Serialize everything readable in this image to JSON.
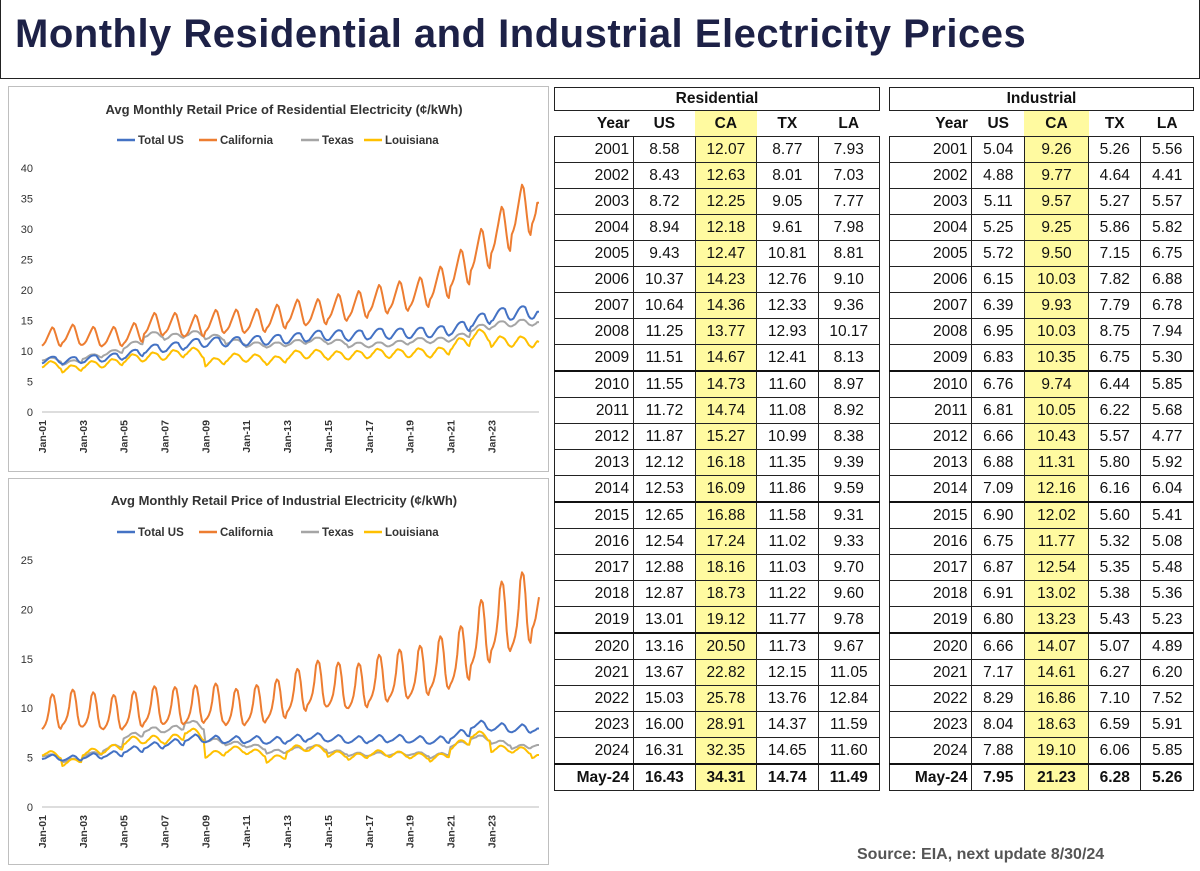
{
  "title": "Monthly Residential and Industrial Electricity Prices",
  "source": "Source:  EIA, next update 8/30/24",
  "colors": {
    "us": "#4472C4",
    "ca": "#ED7D31",
    "tx": "#A5A5A5",
    "la": "#FFC000",
    "title": "#1d2147",
    "highlight": "#fffaa0"
  },
  "chart_data": [
    {
      "type": "line",
      "title": "Avg Monthly Retail Price of Residential Electricity (¢/kWh)",
      "legend": [
        "Total US",
        "California",
        "Texas",
        "Louisiana"
      ],
      "ylim": [
        0,
        40
      ],
      "yticks": [
        "0",
        "5",
        "10",
        "15",
        "20",
        "25",
        "30",
        "35",
        "40"
      ],
      "xticks": [
        "Jan-01",
        "Jan-03",
        "Jan-05",
        "Jan-07",
        "Jan-09",
        "Jan-11",
        "Jan-13",
        "Jan-15",
        "Jan-17",
        "Jan-19",
        "Jan-21",
        "Jan-23"
      ],
      "xlabel": "",
      "ylabel": "",
      "series": [
        {
          "name": "Total US",
          "values": [
            8.58,
            8.43,
            8.72,
            8.94,
            9.43,
            10.37,
            10.64,
            11.25,
            11.51,
            11.55,
            11.72,
            11.87,
            12.12,
            12.53,
            12.65,
            12.54,
            12.88,
            12.87,
            13.01,
            13.16,
            13.67,
            15.03,
            16.0,
            16.31,
            16.43
          ]
        },
        {
          "name": "California",
          "values": [
            12.07,
            12.63,
            12.25,
            12.18,
            12.47,
            14.23,
            14.36,
            13.77,
            14.67,
            14.73,
            14.74,
            15.27,
            16.18,
            16.09,
            16.88,
            17.24,
            18.16,
            18.73,
            19.12,
            20.5,
            22.82,
            25.78,
            28.91,
            32.35,
            34.31
          ]
        },
        {
          "name": "Texas",
          "values": [
            8.77,
            8.01,
            9.05,
            9.61,
            10.81,
            12.76,
            12.33,
            12.93,
            12.41,
            11.6,
            11.08,
            10.99,
            11.35,
            11.86,
            11.58,
            11.02,
            11.03,
            11.22,
            11.77,
            11.73,
            12.15,
            13.76,
            14.37,
            14.65,
            14.74
          ]
        },
        {
          "name": "Louisiana",
          "values": [
            7.93,
            7.03,
            7.77,
            7.98,
            8.81,
            9.1,
            9.36,
            10.17,
            8.13,
            8.97,
            8.92,
            8.38,
            9.39,
            9.59,
            9.31,
            9.33,
            9.7,
            9.6,
            9.78,
            9.67,
            11.05,
            12.84,
            11.59,
            11.6,
            11.49
          ]
        }
      ]
    },
    {
      "type": "line",
      "title": "Avg Monthly Retail Price of Industrial Electricity (¢/kWh)",
      "legend": [
        "Total US",
        "California",
        "Texas",
        "Louisiana"
      ],
      "ylim": [
        0,
        25
      ],
      "yticks": [
        "0",
        "5",
        "10",
        "15",
        "20",
        "25"
      ],
      "xticks": [
        "Jan-01",
        "Jan-03",
        "Jan-05",
        "Jan-07",
        "Jan-09",
        "Jan-11",
        "Jan-13",
        "Jan-15",
        "Jan-17",
        "Jan-19",
        "Jan-21",
        "Jan-23"
      ],
      "xlabel": "",
      "ylabel": "",
      "series": [
        {
          "name": "Total US",
          "values": [
            5.04,
            4.88,
            5.11,
            5.25,
            5.72,
            6.15,
            6.39,
            6.95,
            6.83,
            6.76,
            6.81,
            6.66,
            6.88,
            7.09,
            6.9,
            6.75,
            6.87,
            6.91,
            6.8,
            6.66,
            7.17,
            8.29,
            8.04,
            7.88,
            7.95
          ]
        },
        {
          "name": "California",
          "values": [
            9.26,
            9.77,
            9.57,
            9.25,
            9.5,
            10.03,
            9.93,
            10.03,
            10.35,
            9.74,
            10.05,
            10.43,
            11.31,
            12.16,
            12.02,
            11.77,
            12.54,
            13.02,
            13.23,
            14.07,
            14.61,
            16.86,
            18.63,
            19.1,
            21.23
          ]
        },
        {
          "name": "Texas",
          "values": [
            5.26,
            4.64,
            5.27,
            5.86,
            7.15,
            7.82,
            7.79,
            8.75,
            6.75,
            6.44,
            6.22,
            5.57,
            5.8,
            6.16,
            5.6,
            5.32,
            5.35,
            5.38,
            5.43,
            5.07,
            6.27,
            7.1,
            6.59,
            6.06,
            6.28
          ]
        },
        {
          "name": "Louisiana",
          "values": [
            5.56,
            4.41,
            5.57,
            5.82,
            6.75,
            6.88,
            6.78,
            7.94,
            5.3,
            5.85,
            5.68,
            4.77,
            5.92,
            6.04,
            5.41,
            5.08,
            5.48,
            5.36,
            5.23,
            4.89,
            6.2,
            7.52,
            5.91,
            5.85,
            5.26
          ]
        }
      ]
    },
    {
      "type": "table",
      "title": "Residential",
      "columns": [
        "Year",
        "US",
        "CA",
        "TX",
        "LA"
      ],
      "rows": [
        [
          "2001",
          "8.58",
          "12.07",
          "8.77",
          "7.93"
        ],
        [
          "2002",
          "8.43",
          "12.63",
          "8.01",
          "7.03"
        ],
        [
          "2003",
          "8.72",
          "12.25",
          "9.05",
          "7.77"
        ],
        [
          "2004",
          "8.94",
          "12.18",
          "9.61",
          "7.98"
        ],
        [
          "2005",
          "9.43",
          "12.47",
          "10.81",
          "8.81"
        ],
        [
          "2006",
          "10.37",
          "14.23",
          "12.76",
          "9.10"
        ],
        [
          "2007",
          "10.64",
          "14.36",
          "12.33",
          "9.36"
        ],
        [
          "2008",
          "11.25",
          "13.77",
          "12.93",
          "10.17"
        ],
        [
          "2009",
          "11.51",
          "14.67",
          "12.41",
          "8.13"
        ],
        [
          "2010",
          "11.55",
          "14.73",
          "11.60",
          "8.97"
        ],
        [
          "2011",
          "11.72",
          "14.74",
          "11.08",
          "8.92"
        ],
        [
          "2012",
          "11.87",
          "15.27",
          "10.99",
          "8.38"
        ],
        [
          "2013",
          "12.12",
          "16.18",
          "11.35",
          "9.39"
        ],
        [
          "2014",
          "12.53",
          "16.09",
          "11.86",
          "9.59"
        ],
        [
          "2015",
          "12.65",
          "16.88",
          "11.58",
          "9.31"
        ],
        [
          "2016",
          "12.54",
          "17.24",
          "11.02",
          "9.33"
        ],
        [
          "2017",
          "12.88",
          "18.16",
          "11.03",
          "9.70"
        ],
        [
          "2018",
          "12.87",
          "18.73",
          "11.22",
          "9.60"
        ],
        [
          "2019",
          "13.01",
          "19.12",
          "11.77",
          "9.78"
        ],
        [
          "2020",
          "13.16",
          "20.50",
          "11.73",
          "9.67"
        ],
        [
          "2021",
          "13.67",
          "22.82",
          "12.15",
          "11.05"
        ],
        [
          "2022",
          "15.03",
          "25.78",
          "13.76",
          "12.84"
        ],
        [
          "2023",
          "16.00",
          "28.91",
          "14.37",
          "11.59"
        ],
        [
          "2024",
          "16.31",
          "32.35",
          "14.65",
          "11.60"
        ],
        [
          "May-24",
          "16.43",
          "34.31",
          "14.74",
          "11.49"
        ]
      ]
    },
    {
      "type": "table",
      "title": "Industrial",
      "columns": [
        "Year",
        "US",
        "CA",
        "TX",
        "LA"
      ],
      "rows": [
        [
          "2001",
          "5.04",
          "9.26",
          "5.26",
          "5.56"
        ],
        [
          "2002",
          "4.88",
          "9.77",
          "4.64",
          "4.41"
        ],
        [
          "2003",
          "5.11",
          "9.57",
          "5.27",
          "5.57"
        ],
        [
          "2004",
          "5.25",
          "9.25",
          "5.86",
          "5.82"
        ],
        [
          "2005",
          "5.72",
          "9.50",
          "7.15",
          "6.75"
        ],
        [
          "2006",
          "6.15",
          "10.03",
          "7.82",
          "6.88"
        ],
        [
          "2007",
          "6.39",
          "9.93",
          "7.79",
          "6.78"
        ],
        [
          "2008",
          "6.95",
          "10.03",
          "8.75",
          "7.94"
        ],
        [
          "2009",
          "6.83",
          "10.35",
          "6.75",
          "5.30"
        ],
        [
          "2010",
          "6.76",
          "9.74",
          "6.44",
          "5.85"
        ],
        [
          "2011",
          "6.81",
          "10.05",
          "6.22",
          "5.68"
        ],
        [
          "2012",
          "6.66",
          "10.43",
          "5.57",
          "4.77"
        ],
        [
          "2013",
          "6.88",
          "11.31",
          "5.80",
          "5.92"
        ],
        [
          "2014",
          "7.09",
          "12.16",
          "6.16",
          "6.04"
        ],
        [
          "2015",
          "6.90",
          "12.02",
          "5.60",
          "5.41"
        ],
        [
          "2016",
          "6.75",
          "11.77",
          "5.32",
          "5.08"
        ],
        [
          "2017",
          "6.87",
          "12.54",
          "5.35",
          "5.48"
        ],
        [
          "2018",
          "6.91",
          "13.02",
          "5.38",
          "5.36"
        ],
        [
          "2019",
          "6.80",
          "13.23",
          "5.43",
          "5.23"
        ],
        [
          "2020",
          "6.66",
          "14.07",
          "5.07",
          "4.89"
        ],
        [
          "2021",
          "7.17",
          "14.61",
          "6.27",
          "6.20"
        ],
        [
          "2022",
          "8.29",
          "16.86",
          "7.10",
          "7.52"
        ],
        [
          "2023",
          "8.04",
          "18.63",
          "6.59",
          "5.91"
        ],
        [
          "2024",
          "7.88",
          "19.10",
          "6.06",
          "5.85"
        ],
        [
          "May-24",
          "7.95",
          "21.23",
          "6.28",
          "5.26"
        ]
      ]
    }
  ]
}
